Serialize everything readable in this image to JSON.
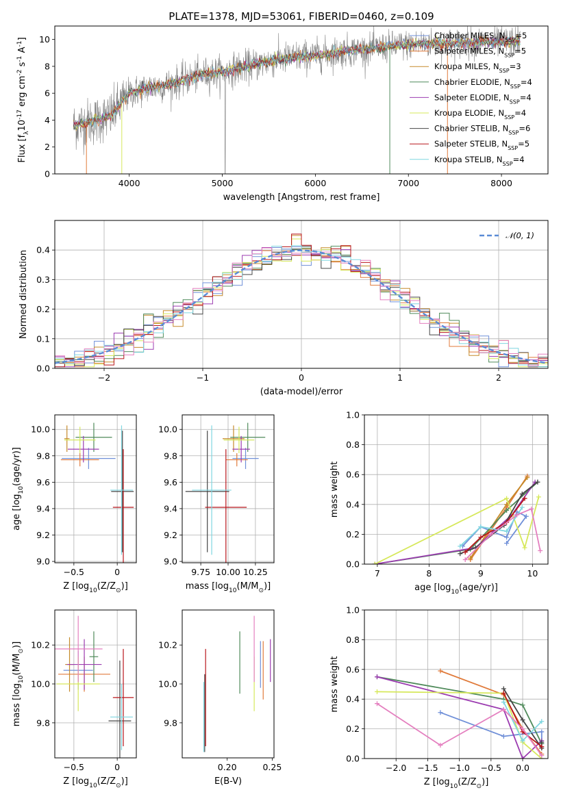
{
  "title": "PLATE=1378, MJD=53061, FIBERID=0460, z=0.109",
  "models": [
    {
      "name": "Chabrier MILES, N$_{SSP}$=5",
      "label": "Chabrier MILES, N",
      "sub": "SSP",
      "tail": "=5",
      "color": "#6f8fd8"
    },
    {
      "name": "Salpeter MILES, N$_{SSP}$=5",
      "label": "Salpeter MILES, N",
      "sub": "SSP",
      "tail": "=5",
      "color": "#e07a3a"
    },
    {
      "name": "Kroupa MILES, N$_{SSP}$=3",
      "label": "Kroupa MILES, N",
      "sub": "SSP",
      "tail": "=3",
      "color": "#c58a2a"
    },
    {
      "name": "Chabrier ELODIE, N$_{SSP}$=4",
      "label": "Chabrier ELODIE, N",
      "sub": "SSP",
      "tail": "=4",
      "color": "#4f8a5a"
    },
    {
      "name": "Salpeter ELODIE, N$_{SSP}$=4",
      "label": "Salpeter ELODIE, N",
      "sub": "SSP",
      "tail": "=4",
      "color": "#9b3bb0"
    },
    {
      "name": "Kroupa ELODIE, N$_{SSP}$=4",
      "label": "Kroupa ELODIE, N",
      "sub": "SSP",
      "tail": "=4",
      "color": "#d6e85a"
    },
    {
      "name": "Chabrier STELIB, N$_{SSP}$=6",
      "label": "Chabrier STELIB, N",
      "sub": "SSP",
      "tail": "=6",
      "color": "#444444"
    },
    {
      "name": "Salpeter STELIB, N$_{SSP}$=5",
      "label": "Salpeter STELIB, N",
      "sub": "SSP",
      "tail": "=5",
      "color": "#b8151a"
    },
    {
      "name": "Kroupa STELIB, N$_{SSP}$=4",
      "label": "Kroupa STELIB, N",
      "sub": "SSP",
      "tail": "=4",
      "color": "#7fd6e0"
    }
  ],
  "extra_colors": {
    "pink": "#e47fbf",
    "data": "#808080"
  },
  "chart_data": [
    {
      "id": "spectrum",
      "type": "line",
      "xlabel": "wavelength [Angstrom, rest frame]",
      "ylabel": "Flux [f$_\\lambda$10$^{-17}$ erg cm$^{-2}$ s$^{-1}$ A$^{-1}$]",
      "xlim": [
        3200,
        8500
      ],
      "ylim": [
        0,
        11
      ],
      "xticks": [
        4000,
        5000,
        6000,
        7000,
        8000
      ],
      "yticks": [
        0,
        2,
        4,
        6,
        8,
        10
      ],
      "continuum": {
        "x": [
          3400,
          3600,
          3800,
          4000,
          4200,
          4400,
          4600,
          4800,
          5000,
          5200,
          5400,
          5600,
          5800,
          6000,
          6200,
          6400,
          6600,
          6800,
          7000,
          7200,
          7400,
          7600,
          7800,
          8000,
          8200
        ],
        "y": [
          3.6,
          3.9,
          4.3,
          6.0,
          6.4,
          6.6,
          7.0,
          7.4,
          7.6,
          7.9,
          8.2,
          8.5,
          8.7,
          8.8,
          9.0,
          9.2,
          9.3,
          9.5,
          9.6,
          9.7,
          9.7,
          9.75,
          9.8,
          9.8,
          9.9
        ]
      },
      "legend": "upper right"
    },
    {
      "id": "residuals",
      "type": "line",
      "xlabel": "(data-model)/error",
      "ylabel": "Normed distribution",
      "xlim": [
        -2.5,
        2.5
      ],
      "ylim": [
        0,
        0.5
      ],
      "xticks": [
        -2,
        -1,
        0,
        1,
        2
      ],
      "yticks": [
        0.0,
        0.1,
        0.2,
        0.3,
        0.4
      ],
      "reference_label": "𝒩(0, 1)",
      "reference": {
        "mu": 0,
        "sigma": 1
      },
      "grid": true,
      "legend": "upper right"
    },
    {
      "id": "age_vs_Z",
      "type": "scatter",
      "xlabel": "Z [log$_{10}$(Z/Z$_\\odot$)]",
      "ylabel": "age  [log$_{10}$(age/yr)]",
      "xlim": [
        -0.72,
        0.22
      ],
      "ylim": [
        8.99,
        10.11
      ],
      "xticks": [
        -0.5,
        0.0
      ],
      "yticks": [
        9.0,
        9.2,
        9.4,
        9.6,
        9.8,
        10.0
      ],
      "grid": true,
      "points": [
        {
          "model": 0,
          "x": -0.33,
          "y": 9.78,
          "xerr": 0.31,
          "yerr": 0.08
        },
        {
          "model": 1,
          "x": -0.43,
          "y": 9.77,
          "xerr": 0.22,
          "yerr": 0.05
        },
        {
          "model": 2,
          "x": -0.58,
          "y": 9.93,
          "xerr": 0.03,
          "yerr": 0.1
        },
        {
          "model": 3,
          "x": -0.27,
          "y": 9.94,
          "xerr": 0.21,
          "yerr": 0.11
        },
        {
          "model": 4,
          "x": -0.39,
          "y": 9.85,
          "xerr": 0.18,
          "yerr": 0.1
        },
        {
          "model": 5,
          "x": -0.43,
          "y": 9.92,
          "xerr": 0.18,
          "yerr": 0.1
        },
        {
          "model": 6,
          "x": 0.06,
          "y": 9.53,
          "xerr": 0.13,
          "yerr": 0.46
        },
        {
          "model": 7,
          "x": 0.07,
          "y": 9.41,
          "xerr": 0.12,
          "yerr": 0.44
        },
        {
          "model": 8,
          "x": 0.05,
          "y": 9.54,
          "xerr": 0.13,
          "yerr": 0.49
        }
      ]
    },
    {
      "id": "age_vs_mass",
      "type": "scatter",
      "xlabel": "mass [log$_{10}$(M/M$_\\odot$)]",
      "xlim": [
        9.58,
        10.42
      ],
      "ylim": [
        8.99,
        10.11
      ],
      "xticks": [
        9.75,
        10.0,
        10.25
      ],
      "xticklabels": [
        "9.75",
        "10.00",
        "10.25"
      ],
      "yticks": [
        9.0,
        9.2,
        9.4,
        9.6,
        9.8,
        10.0
      ],
      "grid": true,
      "points": [
        {
          "model": 0,
          "x": 10.16,
          "y": 9.78,
          "xerr": 0.12,
          "yerr": 0.08
        },
        {
          "model": 1,
          "x": 10.08,
          "y": 9.77,
          "xerr": 0.1,
          "yerr": 0.05
        },
        {
          "model": 2,
          "x": 10.05,
          "y": 9.93,
          "xerr": 0.1,
          "yerr": 0.1
        },
        {
          "model": 3,
          "x": 10.18,
          "y": 9.94,
          "xerr": 0.16,
          "yerr": 0.11
        },
        {
          "model": 4,
          "x": 10.12,
          "y": 9.85,
          "xerr": 0.08,
          "yerr": 0.1
        },
        {
          "model": 5,
          "x": 10.1,
          "y": 9.92,
          "xerr": 0.14,
          "yerr": 0.1
        },
        {
          "model": 6,
          "x": 9.81,
          "y": 9.53,
          "xerr": 0.2,
          "yerr": 0.46
        },
        {
          "model": 7,
          "x": 9.98,
          "y": 9.41,
          "xerr": 0.19,
          "yerr": 0.44
        },
        {
          "model": 8,
          "x": 9.85,
          "y": 9.54,
          "xerr": 0.18,
          "yerr": 0.49
        }
      ]
    },
    {
      "id": "massweight_vs_age",
      "type": "line",
      "xlabel": "age  [log$_{10}$(age/yr)]",
      "ylabel": "mass weight",
      "xlim": [
        6.75,
        10.3
      ],
      "ylim": [
        0,
        1.0
      ],
      "xticks": [
        7,
        8,
        9,
        10
      ],
      "yticks": [
        0.0,
        0.2,
        0.4,
        0.6,
        0.8,
        1.0
      ],
      "grid": true,
      "series": [
        {
          "color": "#6f8fd8",
          "x": [
            8.65,
            9.0,
            9.5,
            9.7,
            9.88,
            9.5
          ],
          "y": [
            0.12,
            0.25,
            0.18,
            0.35,
            0.32,
            0.14
          ]
        },
        {
          "color": "#e07a3a",
          "x": [
            8.8,
            9.5,
            9.9
          ],
          "y": [
            0.03,
            0.38,
            0.59
          ]
        },
        {
          "color": "#c58a2a",
          "x": [
            8.8,
            9.5,
            9.9
          ],
          "y": [
            0.04,
            0.4,
            0.58
          ]
        },
        {
          "color": "#4f8a5a",
          "x": [
            6.95,
            8.8,
            9.5,
            10.1
          ],
          "y": [
            0.0,
            0.1,
            0.36,
            0.55
          ]
        },
        {
          "color": "#9b3bb0",
          "x": [
            6.95,
            8.9,
            9.6,
            10.05
          ],
          "y": [
            0.0,
            0.11,
            0.33,
            0.55
          ]
        },
        {
          "color": "#d6e85a",
          "x": [
            6.95,
            9.5,
            9.85,
            10.12
          ],
          "y": [
            0.0,
            0.44,
            0.11,
            0.45
          ]
        },
        {
          "color": "#444444",
          "x": [
            8.6,
            8.9,
            9.45,
            9.8,
            10.1
          ],
          "y": [
            0.07,
            0.11,
            0.26,
            0.47,
            0.55
          ]
        },
        {
          "color": "#b8151a",
          "x": [
            8.7,
            9.0,
            9.5,
            9.85
          ],
          "y": [
            0.08,
            0.18,
            0.28,
            0.44
          ]
        },
        {
          "color": "#7fd6e0",
          "x": [
            8.6,
            9.0,
            9.5,
            9.8
          ],
          "y": [
            0.12,
            0.25,
            0.22,
            0.38
          ]
        },
        {
          "color": "#e47fbf",
          "x": [
            8.7,
            9.2,
            9.7,
            9.98,
            10.15
          ],
          "y": [
            0.03,
            0.2,
            0.33,
            0.37,
            0.09
          ]
        }
      ]
    },
    {
      "id": "mass_vs_Z",
      "type": "scatter",
      "xlabel": "Z [log$_{10}$(Z/Z$_\\odot$)]",
      "ylabel": "mass [log$_{10}$(M/M$_\\odot$)]",
      "xlim": [
        -0.72,
        0.22
      ],
      "ylim": [
        9.62,
        10.38
      ],
      "xticks": [
        -0.5,
        0.0
      ],
      "yticks": [
        9.8,
        10.0,
        10.2
      ],
      "grid": true,
      "points": [
        {
          "model": 0,
          "x": -0.45,
          "y": 10.07,
          "xerr": 0.17,
          "yerr": 0.1
        },
        {
          "model": 1,
          "x": -0.38,
          "y": 10.05,
          "xerr": 0.3,
          "yerr": 0.09
        },
        {
          "model": 2,
          "x": -0.55,
          "y": 10.1,
          "xerr": 0.05,
          "yerr": 0.14
        },
        {
          "model": 3,
          "x": -0.27,
          "y": 10.14,
          "xerr": 0.05,
          "yerr": 0.13
        },
        {
          "model": 4,
          "x": -0.38,
          "y": 10.1,
          "xerr": 0.2,
          "yerr": 0.13
        },
        {
          "model": 5,
          "x": -0.45,
          "y": 10.0,
          "xerr": 0.25,
          "yerr": 0.14
        },
        {
          "model": 6,
          "x": 0.03,
          "y": 9.81,
          "xerr": 0.13,
          "yerr": 0.31
        },
        {
          "model": 7,
          "x": 0.07,
          "y": 9.93,
          "xerr": 0.12,
          "yerr": 0.25
        },
        {
          "model": 8,
          "x": 0.05,
          "y": 9.83,
          "xerr": 0.13,
          "yerr": 0.17
        },
        {
          "model": 9,
          "x": -0.45,
          "y": 10.18,
          "xerr": 0.28,
          "yerr": 0.17
        }
      ]
    },
    {
      "id": "mass_vs_ebv",
      "type": "scatter",
      "xlabel": "E(B-V)",
      "xlim": [
        0.15,
        0.252
      ],
      "ylim": [
        9.62,
        10.38
      ],
      "xticks": [
        0.2,
        0.25
      ],
      "xticklabels": [
        "0.20",
        "0.25"
      ],
      "yticks": [
        9.8,
        10.0,
        10.2
      ],
      "grid": false,
      "points": [
        {
          "model": 0,
          "x": 0.237,
          "y": 10.1,
          "yerr": 0.12
        },
        {
          "model": 1,
          "x": 0.24,
          "y": 10.07,
          "yerr": 0.15
        },
        {
          "model": 3,
          "x": 0.214,
          "y": 10.11,
          "yerr": 0.16
        },
        {
          "model": 4,
          "x": 0.248,
          "y": 10.12,
          "yerr": 0.11
        },
        {
          "model": 5,
          "x": 0.23,
          "y": 10.0,
          "yerr": 0.14
        },
        {
          "model": 6,
          "x": 0.175,
          "y": 9.85,
          "yerr": 0.2
        },
        {
          "model": 7,
          "x": 0.176,
          "y": 9.93,
          "yerr": 0.25
        },
        {
          "model": 8,
          "x": 0.174,
          "y": 9.83,
          "yerr": 0.18
        },
        {
          "model": 9,
          "x": 0.23,
          "y": 10.18,
          "yerr": 0.17
        }
      ]
    },
    {
      "id": "massweight_vs_Z",
      "type": "line",
      "xlabel": "Z [log$_{10}$(Z/Z$_\\odot$)]",
      "ylabel": "mass weight",
      "xlim": [
        -2.5,
        0.4
      ],
      "ylim": [
        0,
        1.0
      ],
      "xticks": [
        -2.0,
        -1.5,
        -1.0,
        -0.5,
        0.0
      ],
      "xticklabels": [
        "−2.0",
        "−1.5",
        "−1.0",
        "−0.5",
        "0.0"
      ],
      "yticks": [
        0.0,
        0.2,
        0.4,
        0.6,
        0.8,
        1.0
      ],
      "grid": true,
      "series": [
        {
          "color": "#6f8fd8",
          "x": [
            -1.3,
            -0.3,
            0.3,
            0.3
          ],
          "y": [
            0.31,
            0.15,
            0.18,
            0.1
          ]
        },
        {
          "color": "#e07a3a",
          "x": [
            -1.3,
            -0.3,
            0.0,
            0.3
          ],
          "y": [
            0.59,
            0.43,
            0.2,
            0.03
          ]
        },
        {
          "color": "#4f8a5a",
          "x": [
            -2.3,
            -0.3,
            0.0,
            0.3
          ],
          "y": [
            0.55,
            0.4,
            0.36,
            0.1
          ]
        },
        {
          "color": "#9b3bb0",
          "x": [
            -2.3,
            -0.3,
            0.0,
            0.3
          ],
          "y": [
            0.55,
            0.33,
            0.0,
            0.12
          ]
        },
        {
          "color": "#d6e85a",
          "x": [
            -2.3,
            -0.3,
            0.0,
            0.3
          ],
          "y": [
            0.45,
            0.44,
            0.11,
            0.0
          ]
        },
        {
          "color": "#444444",
          "x": [
            -0.3,
            0.0,
            0.3,
            0.3
          ],
          "y": [
            0.47,
            0.26,
            0.07,
            0.11
          ]
        },
        {
          "color": "#b8151a",
          "x": [
            -0.3,
            0.0,
            0.3
          ],
          "y": [
            0.44,
            0.18,
            0.08
          ]
        },
        {
          "color": "#7fd6e0",
          "x": [
            -0.3,
            0.0,
            0.3
          ],
          "y": [
            0.38,
            0.12,
            0.25
          ]
        },
        {
          "color": "#e47fbf",
          "x": [
            -2.3,
            -1.3,
            -0.3,
            0.0,
            0.3
          ],
          "y": [
            0.37,
            0.09,
            0.33,
            0.2,
            0.02
          ]
        }
      ]
    }
  ]
}
